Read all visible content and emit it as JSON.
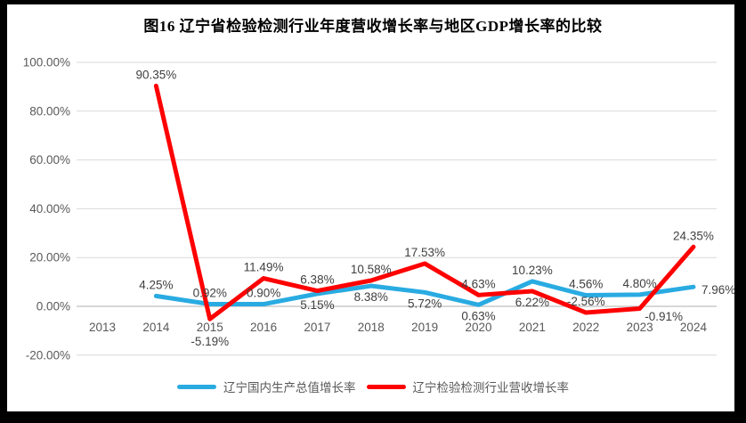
{
  "chart_data": {
    "type": "line",
    "title": "图16 辽宁省检验检测行业年度营收增长率与地区GDP增长率的比较",
    "categories": [
      "2013",
      "2014",
      "2015",
      "2016",
      "2017",
      "2018",
      "2019",
      "2020",
      "2021",
      "2022",
      "2023",
      "2024"
    ],
    "series": [
      {
        "name": "辽宁国内生产总值增长率",
        "color": "#29ABE2",
        "values": [
          null,
          4.25,
          0.92,
          0.9,
          5.15,
          8.38,
          5.72,
          0.63,
          10.23,
          4.56,
          4.8,
          7.96
        ],
        "label_positions": [
          null,
          "above",
          "above",
          "above",
          "below",
          "below",
          "below",
          "below",
          "above",
          "above",
          "above",
          "right"
        ]
      },
      {
        "name": "辽宁检验检测行业营收增长率",
        "color": "#FF0000",
        "values": [
          null,
          90.35,
          -5.19,
          11.49,
          6.38,
          10.58,
          17.53,
          4.63,
          6.22,
          -2.56,
          -0.91,
          24.35
        ],
        "label_positions": [
          null,
          "above",
          "below-far",
          "above",
          "above",
          "above",
          "above",
          "above",
          "below",
          "above",
          "below-right",
          "above"
        ]
      }
    ],
    "ylim": [
      -20,
      100
    ],
    "yticks": [
      100,
      80,
      60,
      40,
      20,
      0,
      -20
    ],
    "ytick_format": "0.00%",
    "grid": true,
    "legend_position": "bottom",
    "colors": {
      "background": "#FFFFFF",
      "frame_border": "#000000",
      "gridline": "#D9D9D9",
      "zero_line": "#BFBFBF",
      "tick_text": "#595959",
      "data_label": "#404040",
      "title_text": "#000000"
    }
  }
}
